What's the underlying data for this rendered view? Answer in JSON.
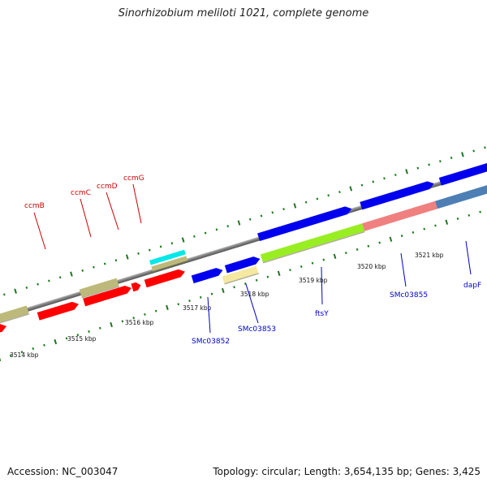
{
  "title": "Sinorhizobium meliloti 1021, complete genome",
  "accession_text": "Accession: NC_003047",
  "summary_text": "Topology: circular; Length: 3,654,135 bp; Genes: 3,425",
  "colors": {
    "backbone": "#888888",
    "tick": "#1a7a1a",
    "top_label": "#cc0000",
    "bottom_label": "#0000cc",
    "khaki": "#bdb97a",
    "red": "#ff0000",
    "cyan": "#00e8e8",
    "blue": "#0000ee",
    "pale_yellow": "#f5e8a0",
    "lime": "#99ee22",
    "salmon": "#f08080",
    "steel_blue": "#4d7fb5"
  },
  "kbp_labels": [
    "3514 kbp",
    "3515 kbp",
    "3516 kbp",
    "3517 kbp",
    "3518 kbp",
    "3519 kbp",
    "3520 kbp",
    "3521 kbp"
  ],
  "top_gene_labels": [
    "ccmB",
    "ccmC",
    "ccmD",
    "ccmG"
  ],
  "bottom_gene_labels": [
    "SMc03852",
    "SMc03853",
    "ftsY",
    "SMc03855",
    "dapF"
  ]
}
